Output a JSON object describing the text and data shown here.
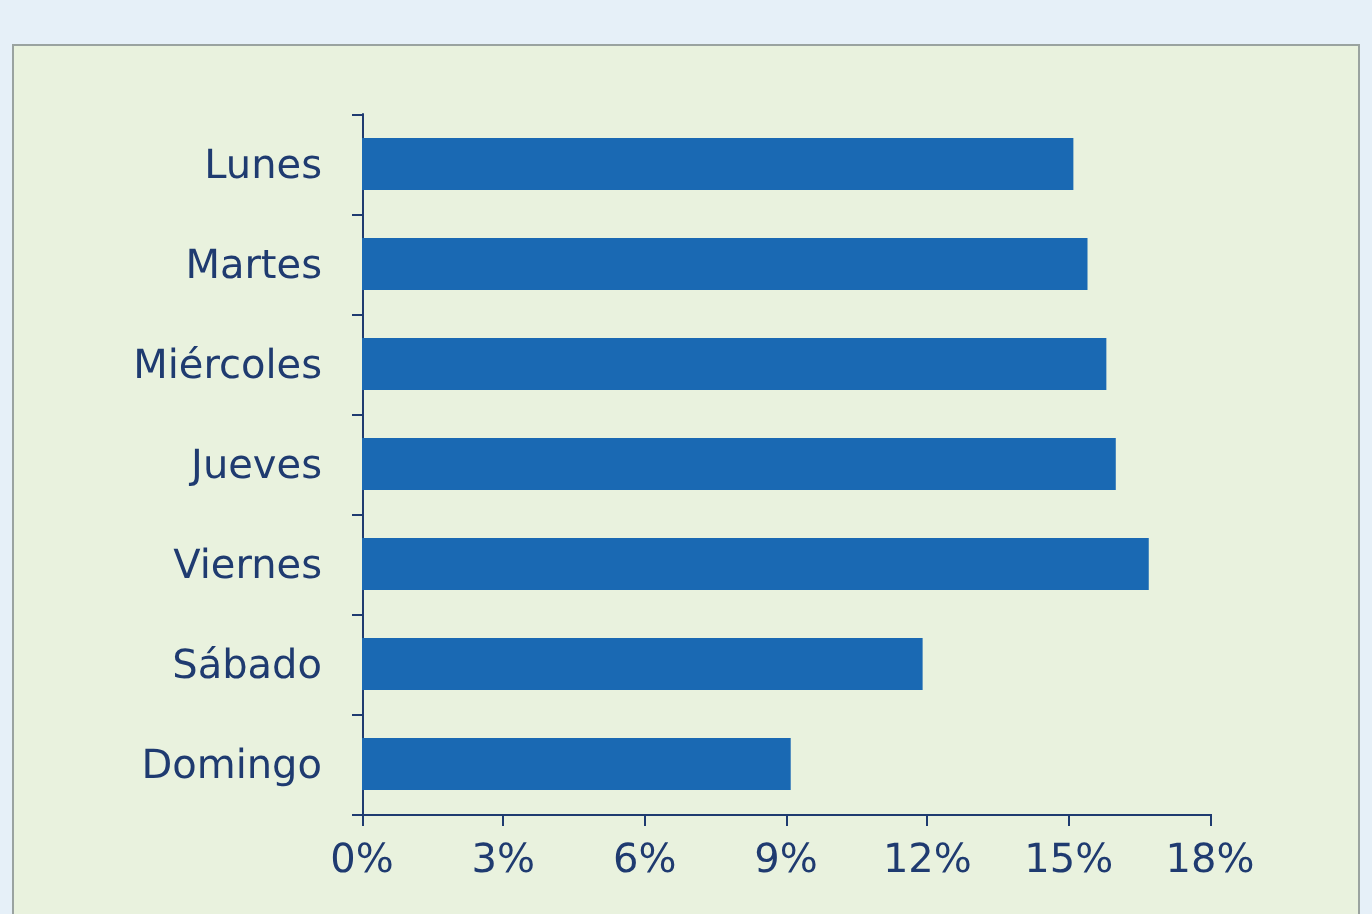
{
  "chart_data": {
    "type": "bar",
    "orientation": "horizontal",
    "categories": [
      "Lunes",
      "Martes",
      "Miércoles",
      "Jueves",
      "Viernes",
      "Sábado",
      "Domingo"
    ],
    "values": [
      15.1,
      15.4,
      15.8,
      16.0,
      16.7,
      11.9,
      9.1
    ],
    "color": "#1a69b3",
    "xlim": [
      0,
      18
    ],
    "xticks": [
      {
        "value": 0,
        "label": "0%"
      },
      {
        "value": 3,
        "label": "3%"
      },
      {
        "value": 6,
        "label": "6%"
      },
      {
        "value": 9,
        "label": "9%"
      },
      {
        "value": 12,
        "label": "12%"
      },
      {
        "value": 15,
        "label": "15%"
      },
      {
        "value": 18,
        "label": "18%"
      }
    ],
    "grid": false
  }
}
